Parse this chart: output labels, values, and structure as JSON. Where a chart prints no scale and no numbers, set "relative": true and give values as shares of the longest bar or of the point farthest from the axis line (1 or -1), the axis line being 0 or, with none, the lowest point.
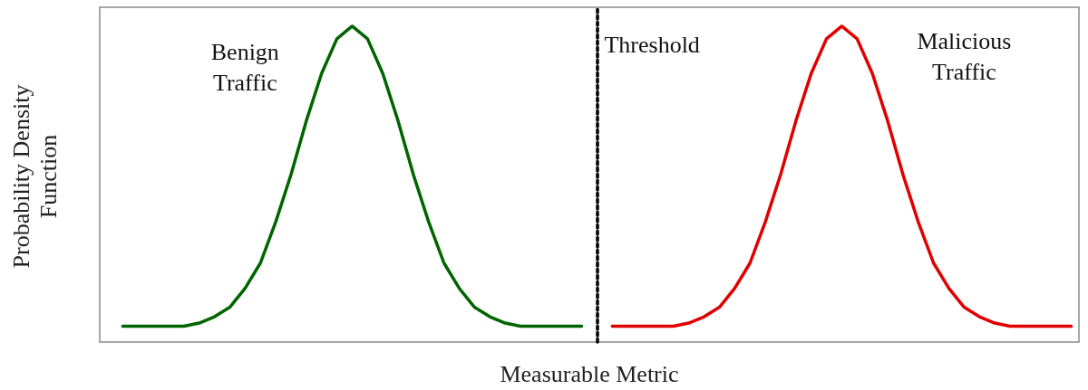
{
  "chart_data": {
    "type": "line",
    "relative": true,
    "xlabel": "Measurable Metric",
    "ylabel": "Probability Density Function",
    "categories": [
      null,
      null,
      null,
      null,
      null,
      null,
      null,
      null,
      null,
      null,
      null,
      null,
      null,
      null,
      null,
      null,
      null,
      null,
      null,
      null,
      null,
      null,
      null,
      null,
      null,
      null,
      null,
      null,
      null,
      null,
      null,
      null,
      null,
      null,
      null,
      null,
      null,
      null,
      null,
      null,
      null,
      null,
      null,
      null,
      null,
      null,
      null,
      null,
      null,
      null,
      null,
      null,
      null,
      null,
      null,
      null,
      null,
      null,
      null,
      null,
      null,
      null,
      null,
      null
    ],
    "grid": false,
    "legend": false,
    "marker": "none",
    "line_style": "solid",
    "series": [
      {
        "name": "Benign Traffic",
        "color": "#006400",
        "values": [
          null,
          0.05,
          0.05,
          0.05,
          0.05,
          0.05,
          0.06,
          0.08,
          0.11,
          0.17,
          0.25,
          0.38,
          0.53,
          0.7,
          0.85,
          0.96,
          1,
          0.96,
          0.85,
          0.7,
          0.53,
          0.38,
          0.25,
          0.17,
          0.11,
          0.08,
          0.06,
          0.05,
          0.05,
          0.05,
          0.05,
          0.05,
          null,
          null,
          null,
          null,
          null,
          null,
          null,
          null,
          null,
          null,
          null,
          null,
          null,
          null,
          null,
          null,
          null,
          null,
          null,
          null,
          null,
          null,
          null,
          null,
          null,
          null,
          null,
          null,
          null,
          null,
          null,
          null
        ]
      },
      {
        "name": "Malicious Traffic",
        "color": "#e00000",
        "values": [
          null,
          null,
          null,
          null,
          null,
          null,
          null,
          null,
          null,
          null,
          null,
          null,
          null,
          null,
          null,
          null,
          null,
          null,
          null,
          null,
          null,
          null,
          null,
          null,
          null,
          null,
          null,
          null,
          null,
          null,
          null,
          null,
          null,
          0.05,
          0.05,
          0.05,
          0.05,
          0.05,
          0.06,
          0.08,
          0.11,
          0.17,
          0.25,
          0.38,
          0.53,
          0.7,
          0.85,
          0.96,
          1,
          0.96,
          0.85,
          0.7,
          0.53,
          0.38,
          0.25,
          0.17,
          0.11,
          0.08,
          0.06,
          0.05,
          0.05,
          0.05,
          0.05,
          0.05
        ]
      }
    ],
    "ref_lines": [
      {
        "axis": "x",
        "label": "Threshold",
        "color": "#000000",
        "line_style": "dotted"
      }
    ]
  }
}
